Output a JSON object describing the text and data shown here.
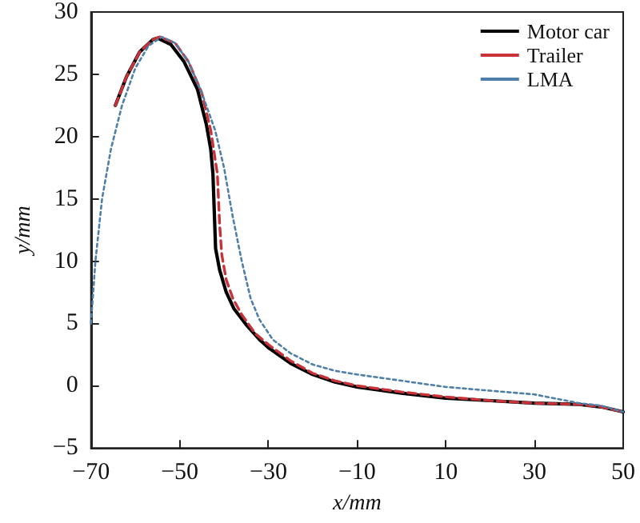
{
  "chart_data": {
    "type": "line",
    "xlabel": "x/mm",
    "ylabel": "y/mm",
    "xlim": [
      -70,
      50
    ],
    "ylim": [
      -5,
      30
    ],
    "xticks": [
      -70,
      -50,
      -30,
      -10,
      10,
      30,
      50
    ],
    "yticks": [
      -5,
      0,
      5,
      10,
      15,
      20,
      25,
      30
    ],
    "grid": false,
    "legend": "top right",
    "marker": "none",
    "series": [
      {
        "name": "Motor car",
        "color": "#000000",
        "line_style": "solid",
        "x": [
          -64.5,
          -62,
          -59,
          -56,
          -55,
          -52,
          -49,
          -46,
          -44,
          -43,
          -42.5,
          -42.2,
          -41.9,
          -41,
          -39.5,
          -37.8,
          -35,
          -32,
          -29.8,
          -25,
          -20,
          -15,
          -10,
          0,
          10,
          20,
          30,
          40,
          45,
          50
        ],
        "values": [
          22.5,
          24.8,
          26.8,
          27.8,
          27.9,
          27.4,
          26,
          23.8,
          21,
          19,
          17,
          14,
          11,
          9.3,
          7.5,
          6.2,
          4.9,
          3.7,
          3,
          1.8,
          0.9,
          0.3,
          -0.1,
          -0.6,
          -1,
          -1.2,
          -1.4,
          -1.5,
          -1.7,
          -2.1
        ]
      },
      {
        "name": "Trailer",
        "color": "#c8333a",
        "line_style": "dashed",
        "x": [
          -64.5,
          -62,
          -59,
          -56,
          -54.5,
          -51,
          -48,
          -45,
          -43,
          -41.5,
          -41,
          -40.5,
          -39.5,
          -38,
          -36,
          -33,
          -30,
          -25,
          -20,
          -15,
          -10,
          0,
          10,
          20,
          30,
          40,
          45,
          50
        ],
        "values": [
          22.5,
          24.8,
          26.8,
          27.8,
          28,
          27.5,
          26,
          23.5,
          20.5,
          17,
          13,
          10.5,
          8.5,
          7,
          5.7,
          4.2,
          3.3,
          2,
          1,
          0.4,
          0,
          -0.5,
          -0.9,
          -1.2,
          -1.4,
          -1.5,
          -1.7,
          -2.1
        ]
      },
      {
        "name": "LMA",
        "color": "#4f7fa8",
        "line_style": "dotted",
        "x": [
          -70,
          -69,
          -67.5,
          -65.5,
          -63,
          -60,
          -57,
          -54,
          -51,
          -48,
          -45,
          -42,
          -40,
          -38,
          -36,
          -34,
          -32,
          -29,
          -25,
          -20,
          -15,
          -10,
          0,
          10,
          20,
          30,
          40,
          45,
          50
        ],
        "values": [
          5,
          10,
          15,
          19,
          22.5,
          25.5,
          27.3,
          28,
          27.5,
          26,
          23.5,
          20.5,
          17.5,
          13.5,
          10,
          7,
          5.3,
          3.7,
          2.6,
          1.7,
          1.2,
          0.9,
          0.4,
          -0.1,
          -0.4,
          -0.7,
          -1.4,
          -1.6,
          -2.1
        ]
      }
    ]
  }
}
